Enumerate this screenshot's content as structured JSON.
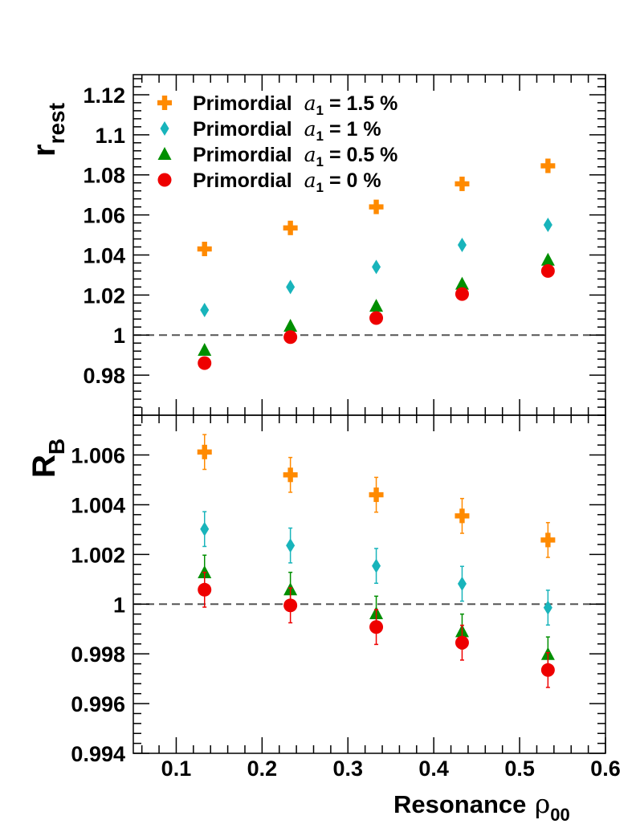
{
  "chart_data": {
    "type": "scatter",
    "x_axis": {
      "title": "Resonance",
      "symbol": "ρ",
      "subscript": "00",
      "range": [
        0.05,
        0.6
      ],
      "ticks": [
        0.1,
        0.2,
        0.3,
        0.4,
        0.5,
        0.6
      ],
      "tick_labels": [
        "0.1",
        "0.2",
        "0.3",
        "0.4",
        "0.5",
        "0.6"
      ]
    },
    "legend": {
      "placement": "top-left",
      "prefix": "Primordial",
      "var_symbol": "a",
      "var_subscript": "1",
      "suffixes": [
        "= 1.5 %",
        "= 1 %",
        "= 0.5 %",
        "= 0 %"
      ]
    },
    "series": [
      {
        "name": "Primordial a1 = 1.5 %",
        "color": "#ff8a00",
        "marker": "cross",
        "x": [
          0.133,
          0.233,
          0.333,
          0.433,
          0.533
        ],
        "top": [
          1.043,
          1.0535,
          1.064,
          1.0755,
          1.0845
        ],
        "bottom": [
          1.00612,
          1.0052,
          1.0044,
          1.00355,
          1.00258
        ],
        "bottom_err": [
          0.0007,
          0.0007,
          0.0007,
          0.0007,
          0.0007
        ]
      },
      {
        "name": "Primordial a1 = 1 %",
        "color": "#18b4bb",
        "marker": "diamond",
        "x": [
          0.133,
          0.233,
          0.333,
          0.433,
          0.533
        ],
        "top": [
          1.0125,
          1.024,
          1.034,
          1.045,
          1.055
        ],
        "bottom": [
          1.00302,
          1.00236,
          1.00154,
          1.00082,
          0.99986
        ],
        "bottom_err": [
          0.0007,
          0.0007,
          0.0007,
          0.0007,
          0.0007
        ]
      },
      {
        "name": "Primordial a1 = 0.5 %",
        "color": "#008f00",
        "marker": "triangle",
        "x": [
          0.133,
          0.233,
          0.333,
          0.433,
          0.533
        ],
        "top": [
          0.9925,
          1.0045,
          1.0145,
          1.0255,
          1.0375
        ],
        "bottom": [
          1.00127,
          1.00058,
          0.99962,
          0.9989,
          0.99798
        ],
        "bottom_err": [
          0.0007,
          0.0007,
          0.0007,
          0.0007,
          0.0007
        ]
      },
      {
        "name": "Primordial a1 = 0 %",
        "color": "#ee0000",
        "marker": "circle",
        "x": [
          0.133,
          0.233,
          0.333,
          0.433,
          0.533
        ],
        "top": [
          0.986,
          0.999,
          1.0085,
          1.0205,
          1.032
        ],
        "bottom": [
          1.00058,
          0.99995,
          0.99908,
          0.99845,
          0.99735
        ],
        "bottom_err": [
          0.0007,
          0.0007,
          0.0007,
          0.0007,
          0.0007
        ]
      }
    ],
    "panels": [
      {
        "id": "top",
        "ylabel": "r",
        "ylabel_sub": "rest",
        "ylim": [
          0.96,
          1.13
        ],
        "yticks": [
          0.98,
          1.0,
          1.02,
          1.04,
          1.06,
          1.08,
          1.1,
          1.12
        ],
        "ytick_labels": [
          "0.98",
          "1",
          "1.02",
          "1.04",
          "1.06",
          "1.08",
          "1.1",
          "1.12"
        ],
        "reference_line": 1.0
      },
      {
        "id": "bottom",
        "ylabel": "R",
        "ylabel_sub": "B",
        "ylim": [
          0.994,
          1.0076
        ],
        "yticks": [
          0.994,
          0.996,
          0.998,
          1.0,
          1.002,
          1.004,
          1.006
        ],
        "ytick_labels": [
          "0.994",
          "0.996",
          "0.998",
          "1",
          "1.002",
          "1.004",
          "1.006"
        ],
        "reference_line": 1.0
      }
    ]
  }
}
